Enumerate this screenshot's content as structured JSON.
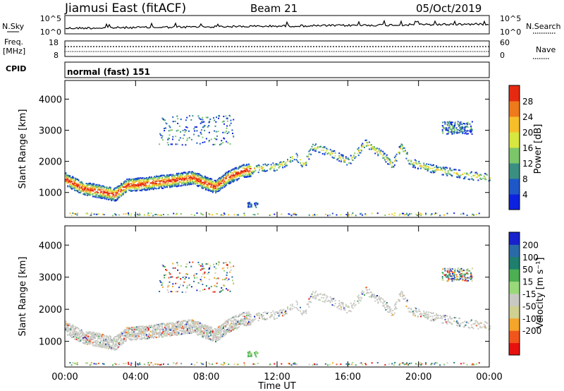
{
  "header": {
    "station": "Jiamusi East (fitACF)",
    "beam": "Beam 21",
    "date": "05/Oct/2019"
  },
  "strip": {
    "nsky_label": "N.Sky",
    "nsearch_label": "N.Search",
    "nsky_ticks": [
      "10^5",
      "10^0"
    ],
    "nsearch_ticks": [
      "10^5",
      "10^0"
    ],
    "freq_label": "Freq.",
    "freq_unit": "[MHz]",
    "freq_ticks": [
      "18",
      "8"
    ],
    "nave_label": "Nave",
    "nave_ticks": [
      "60",
      "0"
    ],
    "cpid_label": "CPID",
    "mode_text": "normal (fast) 151"
  },
  "x_axis": {
    "label": "Time UT",
    "tick_labels": [
      "00:00",
      "04:00",
      "08:00",
      "12:00",
      "16:00",
      "20:00",
      "00:00"
    ],
    "range_hours": [
      0,
      24
    ]
  },
  "colors": {
    "power_scale": [
      "#0d22e0",
      "#1e58c8",
      "#3a8f82",
      "#7cc66a",
      "#d8e640",
      "#f6bf2a",
      "#ef7a1c",
      "#e62a12"
    ],
    "velocity_scale": [
      "#e8110e",
      "#f0561c",
      "#f5a52a",
      "#d0d090",
      "#c9c9c4",
      "#9ad97a",
      "#4caf52",
      "#1e7f6e",
      "#2a6aa8",
      "#1722cc"
    ]
  },
  "chart_data": [
    {
      "type": "heatmap",
      "title": "Jiamusi East (fitACF) Beam 21 05/Oct/2019",
      "xlabel": "Time UT",
      "ylabel": "Slant Range [km]",
      "xlim": [
        0,
        24
      ],
      "ylim": [
        200,
        4600
      ],
      "y_tick_labels": [
        "1000",
        "2000",
        "3000",
        "4000"
      ],
      "colorbar": {
        "label": "Power [dB]",
        "ticks": [
          "4",
          "8",
          "12",
          "16",
          "20",
          "24",
          "28"
        ],
        "range": [
          0,
          32
        ]
      },
      "primary_band": {
        "x_hours": [
          0,
          1,
          2,
          2.8,
          3.5,
          4.5,
          6,
          7.2,
          7.8,
          8.5,
          9.2,
          10,
          11,
          12,
          12.5,
          13,
          13.5,
          14,
          15,
          16,
          17,
          18,
          18.5,
          19,
          19.5,
          20,
          21,
          22,
          23,
          24
        ],
        "slant_range_km": [
          1450,
          1150,
          1050,
          950,
          1250,
          1300,
          1400,
          1500,
          1350,
          1200,
          1500,
          1700,
          1800,
          1850,
          2000,
          2200,
          1900,
          2500,
          2300,
          2000,
          2600,
          2200,
          1900,
          2500,
          2000,
          1900,
          1750,
          1650,
          1550,
          1500
        ]
      },
      "upper_patches": [
        {
          "x_hours": [
            5.3,
            9.5
          ],
          "slant_range_km": [
            2550,
            3500
          ]
        },
        {
          "x_hours": [
            21.3,
            23
          ],
          "slant_range_km": [
            2900,
            3300
          ]
        }
      ]
    },
    {
      "type": "heatmap",
      "xlabel": "Time UT",
      "ylabel": "Slant Range [km]",
      "xlim": [
        0,
        24
      ],
      "ylim": [
        200,
        4600
      ],
      "y_tick_labels": [
        "1000",
        "2000",
        "3000",
        "4000"
      ],
      "colorbar": {
        "label": "Velocity [m s⁻¹]",
        "ticks": [
          "200",
          "100",
          "50",
          "15",
          "-15",
          "-50",
          "-100",
          "-200"
        ],
        "range": [
          -250,
          250
        ]
      },
      "dominant_value": "-15 to 15 (ground scatter)"
    }
  ]
}
